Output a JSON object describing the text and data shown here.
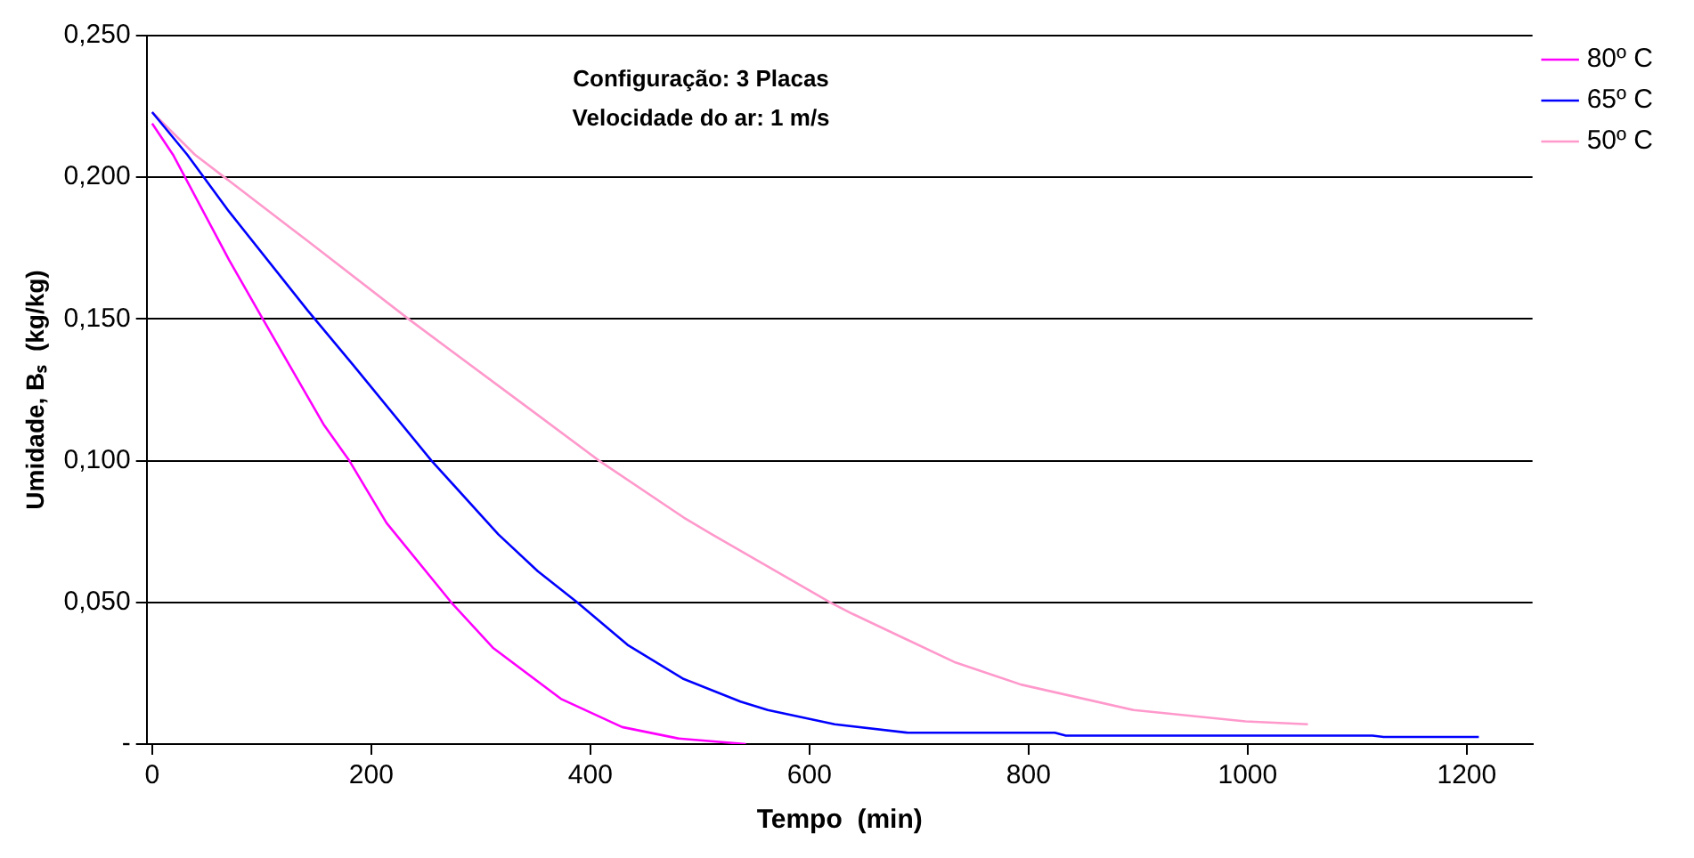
{
  "chart_data": {
    "type": "line",
    "annotations": [
      "Configuração: 3 Placas",
      "Velocidade do ar: 1 m/s"
    ],
    "xlabel": "Tempo  (min)",
    "ylabel": "Umidade, Bₛ  (kg/kg)",
    "xlim": [
      -5,
      1260
    ],
    "xticks": [
      0,
      200,
      400,
      600,
      800,
      1000,
      1200
    ],
    "ylim": [
      0,
      0.25
    ],
    "yticks": [
      {
        "value": 0,
        "label": "-"
      },
      {
        "value": 0.05,
        "label": "0,050"
      },
      {
        "value": 0.1,
        "label": "0,100"
      },
      {
        "value": 0.15,
        "label": "0,150"
      },
      {
        "value": 0.2,
        "label": "0,200"
      },
      {
        "value": 0.25,
        "label": "0,250"
      }
    ],
    "grid": "y",
    "legend": "right",
    "marker": "none",
    "line_style": "solid",
    "series": [
      {
        "name": "80º C",
        "color": "#ff00ff",
        "x": [
          0,
          19,
          70,
          101,
          157,
          180,
          214,
          273,
          311,
          373,
          429,
          480,
          542
        ],
        "values": [
          0.219,
          0.208,
          0.171,
          0.15,
          0.1125,
          0.1,
          0.078,
          0.05,
          0.034,
          0.016,
          0.006,
          0.002,
          0
        ]
      },
      {
        "name": "65º C",
        "color": "#0000ff",
        "x": [
          0,
          32,
          70,
          142,
          183,
          255,
          316,
          352,
          388,
          434,
          485,
          537,
          562,
          623,
          690,
          824,
          834,
          1114,
          1124,
          1211
        ],
        "values": [
          0.223,
          0.208,
          0.188,
          0.153,
          0.134,
          0.1,
          0.074,
          0.061,
          0.05,
          0.035,
          0.023,
          0.015,
          0.012,
          0.007,
          0.004,
          0.004,
          0.003,
          0.003,
          0.0025,
          0.0025
        ]
      },
      {
        "name": "50º C",
        "color": "#ff99cc",
        "x": [
          0,
          39,
          142,
          234,
          342,
          408,
          485,
          511,
          619,
          639,
          732,
          793,
          896,
          998,
          1055
        ],
        "values": [
          0.223,
          0.208,
          0.1775,
          0.15,
          0.119,
          0.1,
          0.08,
          0.074,
          0.05,
          0.046,
          0.029,
          0.021,
          0.012,
          0.008,
          0.007
        ]
      }
    ]
  }
}
